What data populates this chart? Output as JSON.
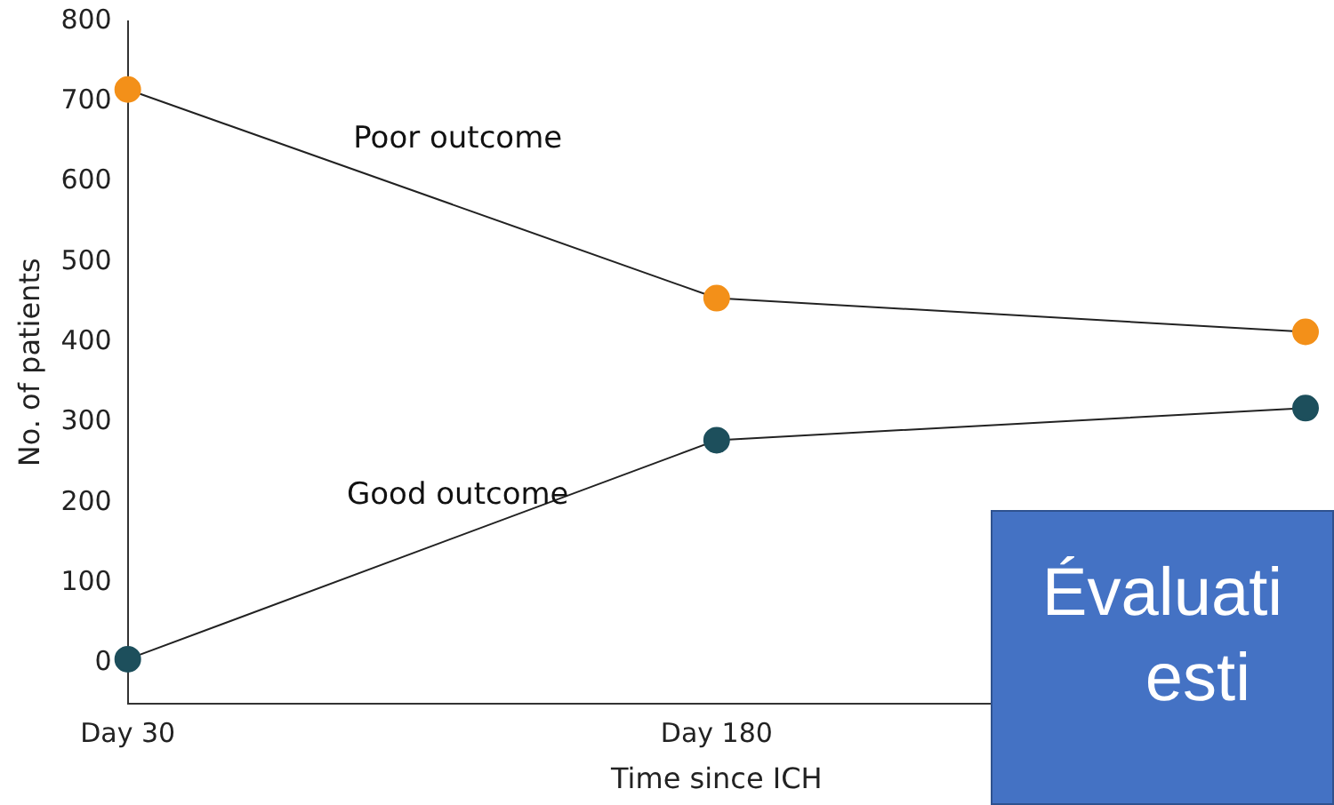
{
  "chart_data": {
    "type": "line",
    "xlabel": "Time since ICH",
    "ylabel": "No. of patients",
    "categories": [
      "Day 30",
      "Day 180",
      null
    ],
    "series": [
      {
        "name": "Poor outcome",
        "color": "#f39019",
        "values": [
          715,
          455,
          413
        ]
      },
      {
        "name": "Good outcome",
        "color": "#1d4f5c",
        "values": [
          5,
          278,
          318
        ]
      }
    ],
    "ylim": [
      -50,
      800
    ],
    "yticks": [
      0,
      100,
      200,
      300,
      400,
      500,
      600,
      700,
      800
    ],
    "grid": false,
    "legend": false,
    "marker": "circle",
    "line_style": "solid",
    "annotations": [
      "Évaluati",
      "esti"
    ]
  }
}
